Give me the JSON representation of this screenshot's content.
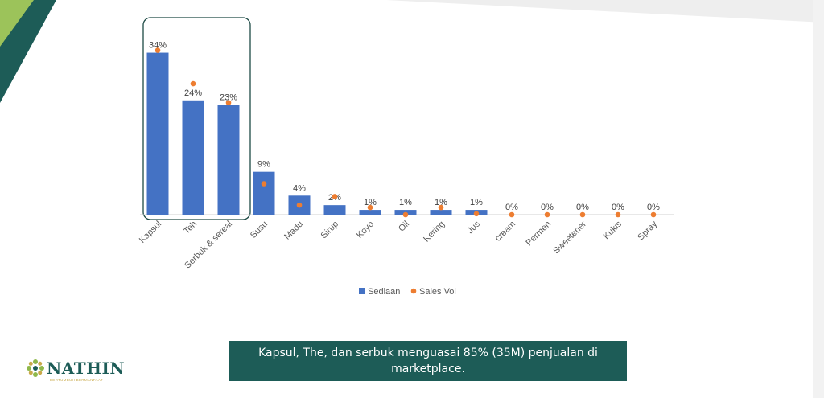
{
  "chart_data": {
    "type": "bar",
    "title": "",
    "categories": [
      "Kapsul",
      "Teh",
      "Serbuk & sereal",
      "Susu",
      "Madu",
      "Sirup",
      "Koyo",
      "Oil",
      "Kering",
      "Jus",
      "cream",
      "Permen",
      "Sweetener",
      "Kukis",
      "Spray"
    ],
    "series": [
      {
        "name": "Sediaan",
        "type": "bar",
        "values": [
          34,
          24,
          23,
          9,
          4,
          2,
          1,
          1,
          1,
          1,
          0,
          0,
          0,
          0,
          0
        ],
        "data_labels": [
          "34%",
          "24%",
          "23%",
          "9%",
          "4%",
          "2%",
          "1%",
          "1%",
          "1%",
          "1%",
          "0%",
          "0%",
          "0%",
          "0%",
          "0%"
        ]
      },
      {
        "name": "Sales Vol",
        "type": "scatter",
        "values": [
          34.5,
          27.5,
          23.5,
          6.5,
          2.0,
          3.8,
          1.5,
          0.0,
          1.5,
          0.2,
          0,
          0,
          0,
          0,
          0
        ]
      }
    ],
    "ylim": [
      0,
      40
    ],
    "highlight_group": [
      "Kapsul",
      "Teh",
      "Serbuk & sereal"
    ],
    "legend_position": "bottom",
    "grid": false,
    "colors": {
      "Sediaan": "#4472c4",
      "Sales Vol": "#ed7d31"
    }
  },
  "callout": {
    "text": "Kapsul, The, dan serbuk menguasai 85% (35M) penjualan di marketplace."
  },
  "logo": {
    "name": "NATHIN",
    "tagline": "BERTUMBUH BERMANFAAT"
  },
  "theme": {
    "accent": "#1d5c57",
    "stripe_light": "#9cc35a"
  }
}
